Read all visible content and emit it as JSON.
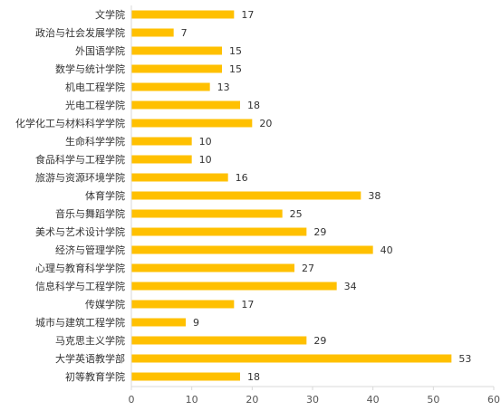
{
  "chart_data": {
    "type": "bar",
    "orientation": "horizontal",
    "categories": [
      "文学院",
      "政治与社会发展学院",
      "外国语学院",
      "数学与统计学院",
      "机电工程学院",
      "光电工程学院",
      "化学化工与材料科学学院",
      "生命科学学院",
      "食品科学与工程学院",
      "旅游与资源环境学院",
      "体育学院",
      "音乐与舞蹈学院",
      "美术与艺术设计学院",
      "经济与管理学院",
      "心理与教育科学学院",
      "信息科学与工程学院",
      "传媒学院",
      "城市与建筑工程学院",
      "马克思主义学院",
      "大学英语教学部",
      "初等教育学院"
    ],
    "values": [
      17,
      7,
      15,
      15,
      13,
      18,
      20,
      10,
      10,
      16,
      38,
      25,
      29,
      40,
      27,
      34,
      17,
      9,
      29,
      53,
      18
    ],
    "xlim": [
      0,
      60
    ],
    "xticks": [
      0,
      10,
      20,
      30,
      40,
      50,
      60
    ],
    "bar_color": "#FFC000",
    "grid": false,
    "data_labels": true
  }
}
